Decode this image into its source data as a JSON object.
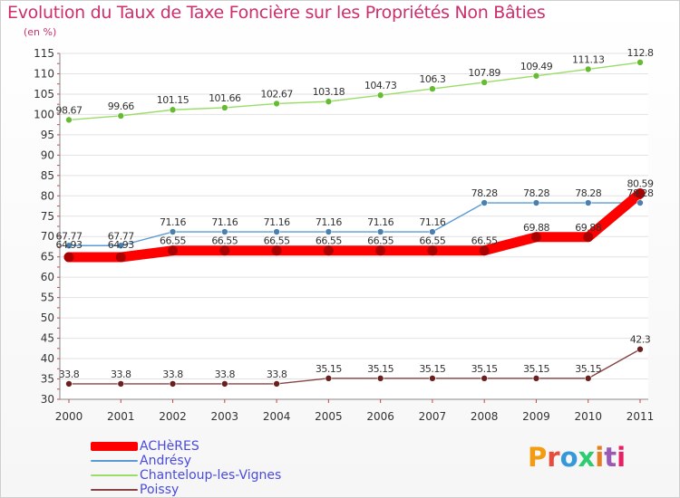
{
  "title": "Evolution du Taux de Taxe Foncière sur les Propriétés Non Bâties",
  "subtitle": "(en %)",
  "logo": {
    "text": "Proxiti",
    "letters": [
      "P",
      "r",
      "o",
      "x",
      "i",
      "t",
      "i"
    ],
    "colors": [
      "#f39c12",
      "#e74c3c",
      "#3498db",
      "#2ecc71",
      "#e67e22",
      "#9b59b6",
      "#e91e63"
    ]
  },
  "chart_data": {
    "type": "line",
    "title": "Evolution du Taux de Taxe Foncière sur les Propriétés Non Bâties",
    "ylabel": "(en %)",
    "xlabel": "",
    "ylim": [
      30,
      115
    ],
    "yticks": [
      30,
      35,
      40,
      45,
      50,
      55,
      60,
      65,
      70,
      75,
      80,
      85,
      90,
      95,
      100,
      105,
      110,
      115
    ],
    "categories": [
      "2000",
      "2001",
      "2002",
      "2003",
      "2004",
      "2005",
      "2006",
      "2007",
      "2008",
      "2009",
      "2010",
      "2011"
    ],
    "series": [
      {
        "name": "ACHèRES",
        "color": "#ff0000",
        "markerColor": "#aa0000",
        "thick": true,
        "values": [
          64.93,
          64.93,
          66.55,
          66.55,
          66.55,
          66.55,
          66.55,
          66.55,
          66.55,
          69.88,
          69.88,
          80.59
        ],
        "labels": [
          "64.93",
          "64.93",
          "66.55",
          "66.55",
          "66.55",
          "66.55",
          "66.55",
          "66.55",
          "66.55",
          "69.88",
          "69.88",
          "80.59"
        ]
      },
      {
        "name": "Andrésy",
        "color": "#5b9bd5",
        "markerColor": "#4a80b0",
        "thick": false,
        "values": [
          67.77,
          67.77,
          71.16,
          71.16,
          71.16,
          71.16,
          71.16,
          71.16,
          78.28,
          78.28,
          78.28,
          78.28
        ],
        "labels": [
          "67.77",
          "67.77",
          "71.16",
          "71.16",
          "71.16",
          "71.16",
          "71.16",
          "71.16",
          "78.28",
          "78.28",
          "78.28",
          "78.28"
        ]
      },
      {
        "name": "Chanteloup-les-Vignes",
        "color": "#99dd66",
        "markerColor": "#66bb33",
        "thick": false,
        "values": [
          98.67,
          99.66,
          101.15,
          101.66,
          102.67,
          103.18,
          104.73,
          106.3,
          107.89,
          109.49,
          111.13,
          112.8
        ],
        "labels": [
          "98.67",
          "99.66",
          "101.15",
          "101.66",
          "102.67",
          "103.18",
          "104.73",
          "106.3",
          "107.89",
          "109.49",
          "111.13",
          "112.8"
        ]
      },
      {
        "name": "Poissy",
        "color": "#884444",
        "markerColor": "#6b1f1f",
        "thick": false,
        "values": [
          33.8,
          33.8,
          33.8,
          33.8,
          33.8,
          35.15,
          35.15,
          35.15,
          35.15,
          35.15,
          35.15,
          42.3
        ],
        "labels": [
          "33.8",
          "33.8",
          "33.8",
          "33.8",
          "33.8",
          "35.15",
          "35.15",
          "35.15",
          "35.15",
          "35.15",
          "35.15",
          "42.3"
        ]
      }
    ]
  }
}
